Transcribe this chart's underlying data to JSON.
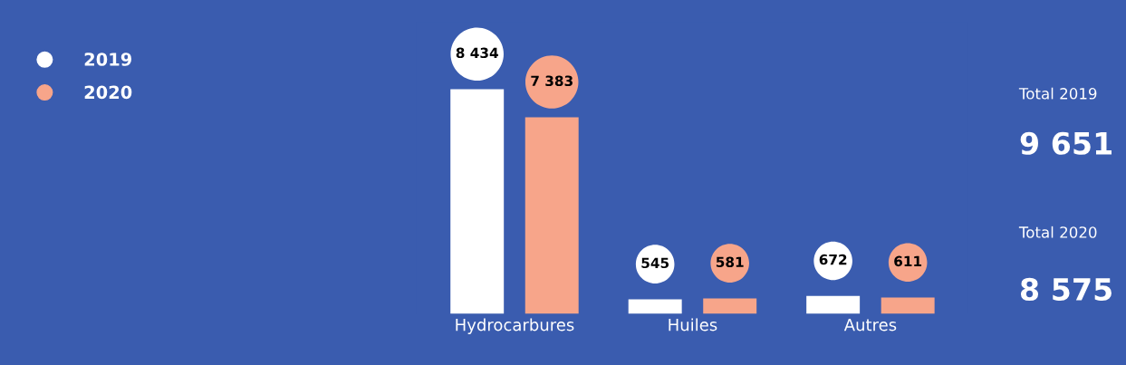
{
  "chart_data": {
    "type": "bar",
    "categories": [
      "Hydrocarbures",
      "Huiles",
      "Autres"
    ],
    "series": [
      {
        "name": "2019",
        "color": "#ffffff",
        "values": [
          8434,
          545,
          672
        ],
        "value_labels": [
          "8 434",
          "545",
          "672"
        ]
      },
      {
        "name": "2020",
        "color": "#f7a58a",
        "values": [
          7383,
          581,
          611
        ],
        "value_labels": [
          "7 383",
          "581",
          "611"
        ]
      }
    ],
    "tick_labels": "x",
    "legend": "top left",
    "grid": false,
    "annotations": [
      "Total 2019",
      "9 651",
      "Total 2020",
      "8 575"
    ]
  }
}
